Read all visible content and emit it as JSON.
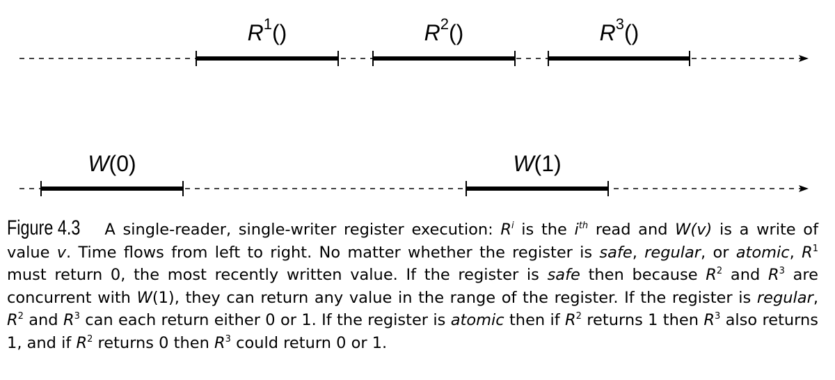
{
  "diagram": {
    "reader_ops": [
      {
        "name": "R",
        "sup": "1",
        "suffix": "()"
      },
      {
        "name": "R",
        "sup": "2",
        "suffix": "()"
      },
      {
        "name": "R",
        "sup": "3",
        "suffix": "()"
      }
    ],
    "writer_ops": [
      {
        "name": "W",
        "suffix": "(0)"
      },
      {
        "name": "W",
        "suffix": "(1)"
      }
    ]
  },
  "caption": {
    "figure_label": "Figure 4.3",
    "segments": [
      {
        "t": "A single-reader, single-writer register execution: "
      },
      {
        "t": "R",
        "i": true
      },
      {
        "t": "i",
        "sup": true,
        "i": true
      },
      {
        "t": " is the "
      },
      {
        "t": "i",
        "i": true
      },
      {
        "t": "th",
        "sup": true,
        "i": true
      },
      {
        "t": " read and "
      },
      {
        "t": "W(v)",
        "i": true
      },
      {
        "t": " is a write of value "
      },
      {
        "t": "v",
        "i": true
      },
      {
        "t": ". Time flows from left to right. No matter whether the register is "
      },
      {
        "t": "safe",
        "i": true
      },
      {
        "t": ", "
      },
      {
        "t": "regular",
        "i": true
      },
      {
        "t": ", or "
      },
      {
        "t": "atomic",
        "i": true
      },
      {
        "t": ", "
      },
      {
        "t": "R",
        "i": true
      },
      {
        "t": "1",
        "sup": true
      },
      {
        "t": " must return 0, the most recently written value. If the register is "
      },
      {
        "t": "safe",
        "i": true
      },
      {
        "t": " then because "
      },
      {
        "t": "R",
        "i": true
      },
      {
        "t": "2",
        "sup": true
      },
      {
        "t": " and "
      },
      {
        "t": "R",
        "i": true
      },
      {
        "t": "3",
        "sup": true
      },
      {
        "t": " are concurrent with "
      },
      {
        "t": "W",
        "i": true
      },
      {
        "t": "(1), they can return any value in the range of the register. If the register is "
      },
      {
        "t": "regular",
        "i": true
      },
      {
        "t": ", "
      },
      {
        "t": "R",
        "i": true
      },
      {
        "t": "2",
        "sup": true
      },
      {
        "t": " and "
      },
      {
        "t": "R",
        "i": true
      },
      {
        "t": "3",
        "sup": true
      },
      {
        "t": " can each return either 0 or 1. If the register is "
      },
      {
        "t": "atomic",
        "i": true
      },
      {
        "t": " then if "
      },
      {
        "t": "R",
        "i": true
      },
      {
        "t": "2",
        "sup": true
      },
      {
        "t": " returns 1 then "
      },
      {
        "t": "R",
        "i": true
      },
      {
        "t": "3",
        "sup": true
      },
      {
        "t": " also returns 1, and if "
      },
      {
        "t": "R",
        "i": true
      },
      {
        "t": "2",
        "sup": true
      },
      {
        "t": " returns 0 then "
      },
      {
        "t": "R",
        "i": true
      },
      {
        "t": "3",
        "sup": true
      },
      {
        "t": " could return 0 or 1."
      }
    ]
  }
}
